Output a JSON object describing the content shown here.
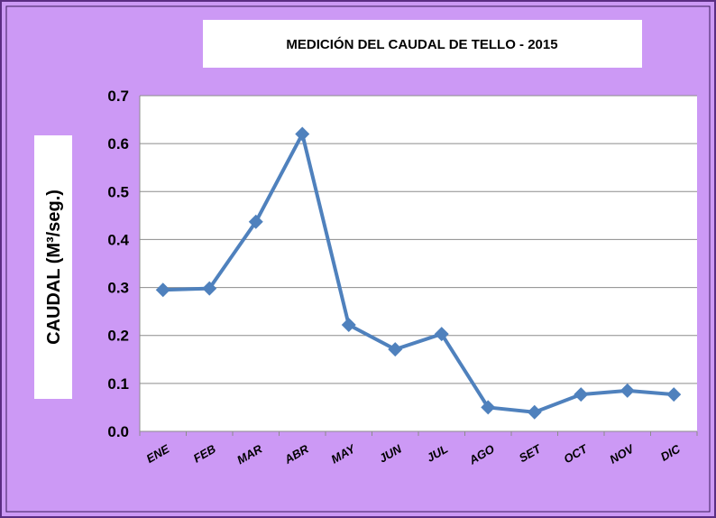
{
  "chart_data": {
    "type": "line",
    "title": "MEDICIÓN DEL CAUDAL DE TELLO -  2015",
    "y_label": "CAUDAL  (M³/seg.)",
    "categories": [
      "ENE",
      "FEB",
      "MAR",
      "ABR",
      "MAY",
      "JUN",
      "JUL",
      "AGO",
      "SET",
      "OCT",
      "NOV",
      "DIC"
    ],
    "values": [
      0.295,
      0.298,
      0.437,
      0.62,
      0.222,
      0.171,
      0.203,
      0.05,
      0.04,
      0.077,
      0.085,
      0.077
    ],
    "color": "#4f81bd",
    "ylim": [
      0,
      0.7
    ],
    "yticks": [
      {
        "value": 0,
        "label": "0.0"
      },
      0.1,
      0.2,
      0.3,
      0.4,
      0.5,
      0.6,
      0.7
    ],
    "grid": true
  }
}
